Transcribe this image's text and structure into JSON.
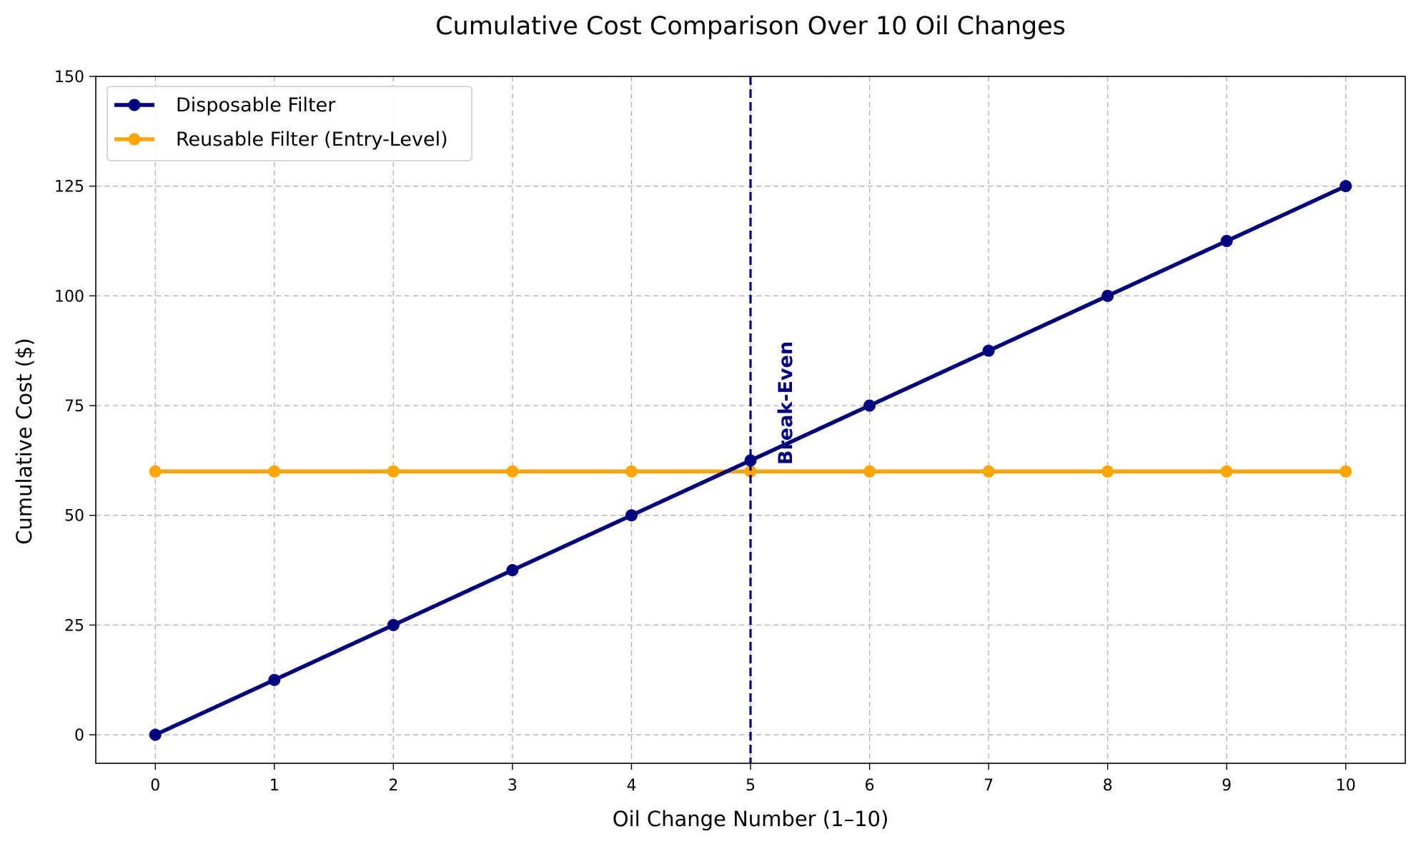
{
  "chart_data": {
    "type": "line",
    "title": "Cumulative Cost Comparison Over 10 Oil Changes",
    "xlabel": "Oil Change Number (1–10)",
    "ylabel": "Cumulative Cost ($)",
    "x": [
      0,
      1,
      2,
      3,
      4,
      5,
      6,
      7,
      8,
      9,
      10
    ],
    "xlim": [
      -0.5,
      10.5
    ],
    "ylim": [
      -6.5,
      150
    ],
    "xticks": [
      "0",
      "1",
      "2",
      "3",
      "4",
      "5",
      "6",
      "7",
      "8",
      "9",
      "10"
    ],
    "yticks": [
      "0",
      "25",
      "50",
      "75",
      "100",
      "125",
      "150"
    ],
    "grid": true,
    "legend_position": "top-left",
    "series": [
      {
        "name": "Disposable Filter",
        "color": "#000080",
        "values": [
          0,
          12.5,
          25,
          37.5,
          50,
          62.5,
          75,
          87.5,
          100,
          112.5,
          125
        ]
      },
      {
        "name": "Reusable Filter (Entry-Level)",
        "color": "#FFA500",
        "values": [
          60,
          60,
          60,
          60,
          60,
          60,
          60,
          60,
          60,
          60,
          60
        ]
      }
    ],
    "annotations": [
      {
        "text": "Break-Even",
        "x": 5,
        "type": "vertical-line",
        "color": "#000080"
      }
    ]
  }
}
